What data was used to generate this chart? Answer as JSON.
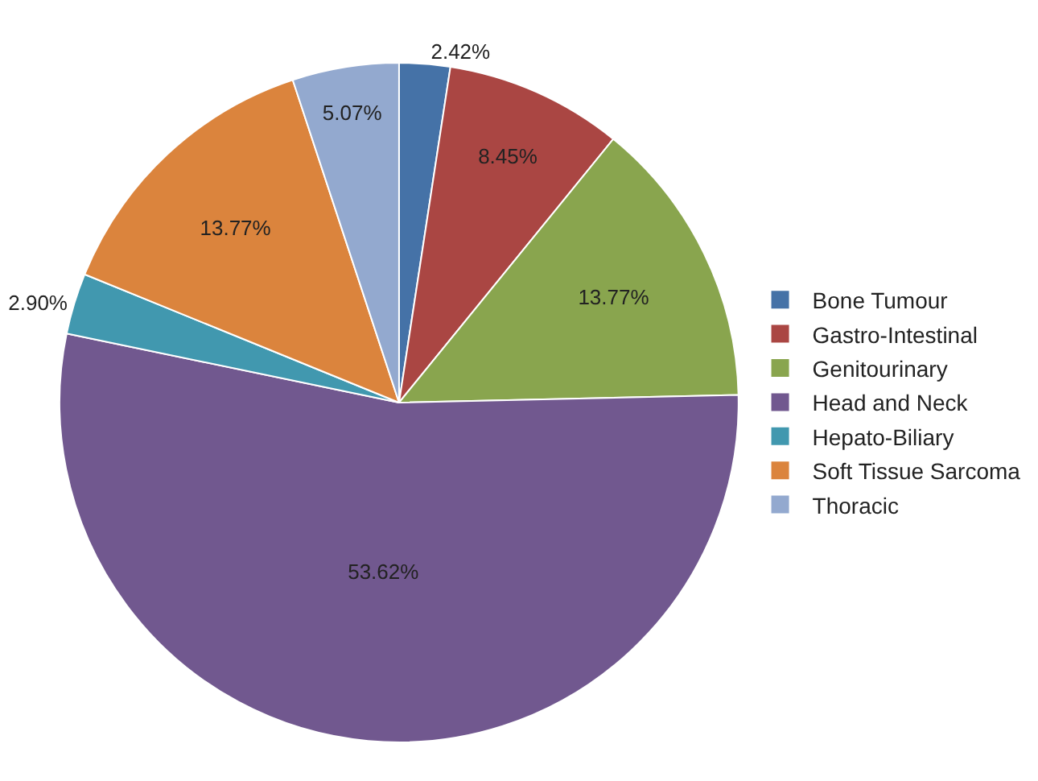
{
  "chart_data": {
    "type": "pie",
    "categories": [
      "Bone Tumour",
      "Gastro-Intestinal",
      "Genitourinary",
      "Head and Neck",
      "Hepato-Biliary",
      "Soft Tissue Sarcoma",
      "Thoracic"
    ],
    "values": [
      2.42,
      8.45,
      13.77,
      53.62,
      2.9,
      13.77,
      5.07
    ],
    "value_labels": [
      "2.42%",
      "8.45%",
      "13.77%",
      "53.62%",
      "2.90%",
      "13.77%",
      "5.07%"
    ],
    "colors": [
      "#4572a7",
      "#aa4643",
      "#89a54e",
      "#71588f",
      "#4198af",
      "#db843d",
      "#93a9cf"
    ],
    "legend": "right"
  }
}
